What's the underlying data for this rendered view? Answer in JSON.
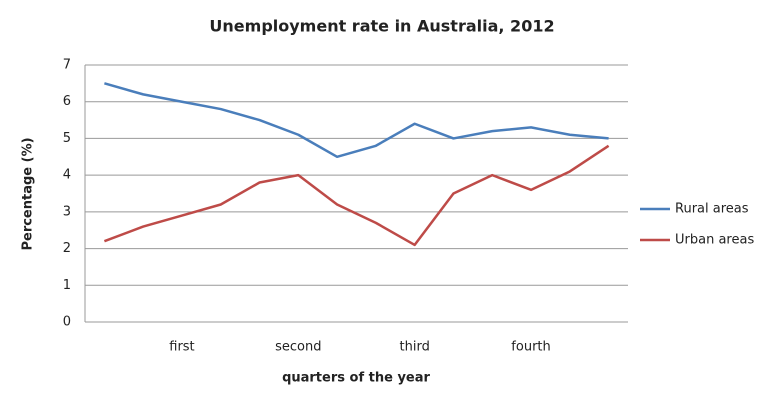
{
  "chart_data": {
    "type": "line",
    "title": "Unemployment rate in Australia, 2012",
    "x_label": "quarters of the year",
    "y_label": "Percentage (%)",
    "categories": [
      null,
      null,
      "first",
      null,
      null,
      "second",
      null,
      null,
      "third",
      null,
      null,
      "fourth",
      null,
      null
    ],
    "series": [
      {
        "name": "Rural areas",
        "color": "#4a7ebb",
        "values": [
          6.5,
          6.2,
          6.0,
          5.8,
          5.5,
          5.1,
          4.5,
          4.8,
          5.4,
          5.0,
          5.2,
          5.3,
          5.1,
          5.0
        ]
      },
      {
        "name": "Urban areas",
        "color": "#be4b48",
        "values": [
          2.2,
          2.6,
          2.9,
          3.2,
          3.8,
          4.0,
          3.2,
          2.7,
          2.1,
          3.5,
          4.0,
          3.6,
          4.1,
          4.8
        ]
      }
    ],
    "ylim": [
      0,
      7
    ],
    "yticks": [
      0,
      1,
      2,
      3,
      4,
      5,
      6,
      7
    ],
    "grid": true,
    "legend": "right"
  }
}
